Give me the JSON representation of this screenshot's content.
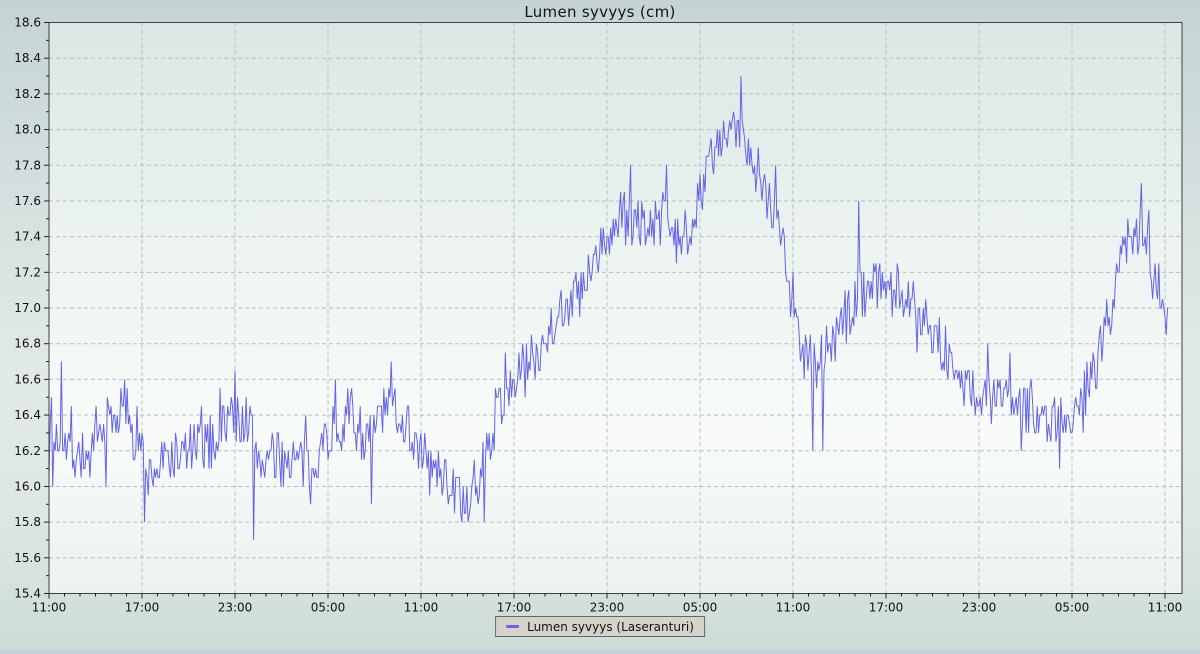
{
  "title": "Lumen syvyys (cm)",
  "legend": {
    "label": "Lumen syvyys (Laseranturi)"
  },
  "colors": {
    "line": "#6565e4",
    "grid": "#b6bfbf",
    "frame": "#3f3f3f",
    "text": "#111111",
    "legend_bg": "#d5d2cb",
    "legend_border": "#666666",
    "plot_gradient_top": "#dbe6e5",
    "plot_gradient_mid": "#f0f6f4",
    "plot_gradient_bottom": "#ebf2ef"
  },
  "chart_data": {
    "type": "line",
    "title": "Lumen syvyys (cm)",
    "series_name": "Lumen syvyys (Laseranturi)",
    "unit": "cm",
    "grid": true,
    "legend_position": "bottom-center",
    "ylim": [
      15.4,
      18.6
    ],
    "y_major_step": 0.2,
    "y_minor_step": 0.1,
    "x_tick_labels": [
      "11:00",
      "17:00",
      "23:00",
      "05:00",
      "11:00",
      "17:00",
      "23:00",
      "05:00",
      "11:00",
      "17:00",
      "23:00",
      "05:00",
      "11:00"
    ],
    "x_major_step_hours": 6,
    "x_minor_step_hours": 1,
    "x_hours_span": 72.3,
    "mean_anchors": [
      [
        0,
        16.2
      ],
      [
        0.8,
        16.3
      ],
      [
        1.6,
        16.2
      ],
      [
        2.6,
        16.15
      ],
      [
        3.8,
        16.35
      ],
      [
        5.0,
        16.45
      ],
      [
        5.8,
        16.3
      ],
      [
        6.3,
        16.05
      ],
      [
        7.5,
        16.15
      ],
      [
        9.0,
        16.2
      ],
      [
        10.6,
        16.25
      ],
      [
        11.6,
        16.4
      ],
      [
        12.9,
        16.35
      ],
      [
        13.6,
        16.15
      ],
      [
        14.6,
        16.15
      ],
      [
        16.0,
        16.15
      ],
      [
        16.8,
        16.1
      ],
      [
        18.0,
        16.3
      ],
      [
        19.5,
        16.4
      ],
      [
        20.6,
        16.25
      ],
      [
        21.4,
        16.4
      ],
      [
        22.4,
        16.45
      ],
      [
        23.4,
        16.3
      ],
      [
        24.5,
        16.1
      ],
      [
        25.6,
        16.05
      ],
      [
        26.4,
        15.95
      ],
      [
        27.2,
        15.9
      ],
      [
        28.0,
        16.1
      ],
      [
        29.0,
        16.45
      ],
      [
        30.0,
        16.6
      ],
      [
        31.5,
        16.75
      ],
      [
        33.0,
        17.0
      ],
      [
        34.5,
        17.1
      ],
      [
        36.0,
        17.4
      ],
      [
        37.0,
        17.5
      ],
      [
        38.5,
        17.45
      ],
      [
        39.5,
        17.5
      ],
      [
        40.5,
        17.35
      ],
      [
        41.5,
        17.5
      ],
      [
        42.5,
        17.8
      ],
      [
        43.6,
        17.95
      ],
      [
        44.6,
        18.0
      ],
      [
        45.3,
        17.9
      ],
      [
        46.0,
        17.7
      ],
      [
        46.8,
        17.55
      ],
      [
        47.3,
        17.4
      ],
      [
        48.0,
        16.95
      ],
      [
        48.8,
        16.75
      ],
      [
        49.6,
        16.7
      ],
      [
        50.5,
        16.8
      ],
      [
        51.5,
        16.95
      ],
      [
        52.3,
        17.1
      ],
      [
        53.5,
        17.15
      ],
      [
        54.5,
        17.1
      ],
      [
        55.5,
        17.05
      ],
      [
        56.5,
        16.95
      ],
      [
        57.5,
        16.8
      ],
      [
        58.7,
        16.6
      ],
      [
        60.0,
        16.5
      ],
      [
        61.5,
        16.5
      ],
      [
        63.0,
        16.45
      ],
      [
        64.5,
        16.4
      ],
      [
        65.5,
        16.4
      ],
      [
        66.5,
        16.45
      ],
      [
        67.5,
        16.65
      ],
      [
        68.5,
        17.0
      ],
      [
        69.3,
        17.3
      ],
      [
        70.0,
        17.45
      ],
      [
        70.7,
        17.4
      ],
      [
        71.3,
        17.15
      ],
      [
        72.0,
        17.0
      ],
      [
        72.3,
        16.9
      ]
    ],
    "spikes": [
      [
        0.15,
        16.5
      ],
      [
        0.25,
        16.0
      ],
      [
        0.8,
        16.7
      ],
      [
        6.2,
        15.8
      ],
      [
        13.2,
        15.7
      ],
      [
        16.85,
        15.9
      ],
      [
        20.8,
        15.9
      ],
      [
        22.1,
        16.7
      ],
      [
        26.6,
        15.8
      ],
      [
        27.0,
        15.8
      ],
      [
        37.5,
        17.8
      ],
      [
        39.8,
        17.8
      ],
      [
        44.6,
        18.3
      ],
      [
        46.9,
        17.8
      ],
      [
        48.0,
        17.2
      ],
      [
        49.3,
        16.2
      ],
      [
        49.9,
        16.2
      ],
      [
        52.2,
        17.6
      ],
      [
        65.2,
        16.1
      ],
      [
        70.5,
        17.7
      ]
    ],
    "noise": {
      "seed": 7,
      "dt_hours": 0.08,
      "base_amp": 0.15,
      "spike_prob": 0.04,
      "spike_amp": 0.34,
      "quantum": 0.05
    }
  }
}
